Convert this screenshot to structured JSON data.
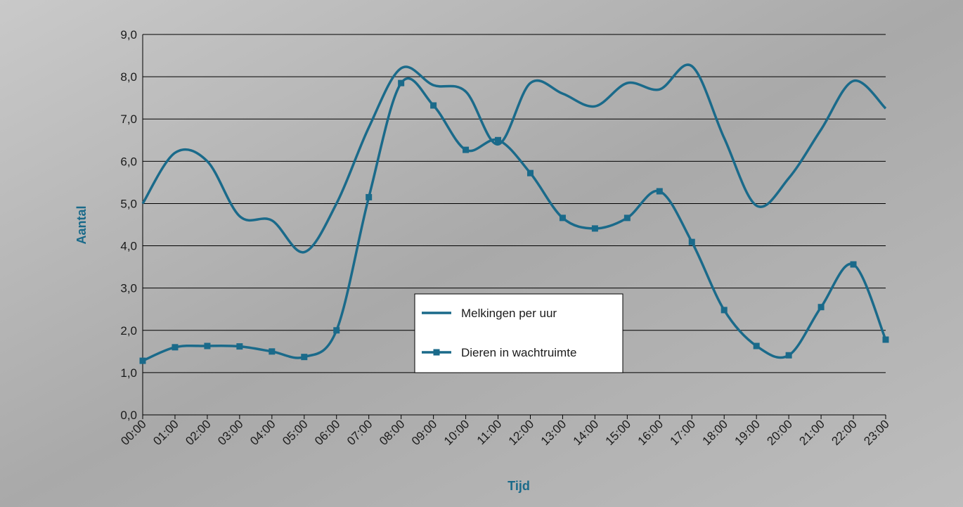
{
  "chart_data": {
    "type": "line",
    "x_label": "Tijd",
    "y_label": "Aantal",
    "categories": [
      "00:00",
      "01:00",
      "02:00",
      "03:00",
      "04:00",
      "05:00",
      "06:00",
      "07:00",
      "08:00",
      "09:00",
      "10:00",
      "11:00",
      "12:00",
      "13:00",
      "14:00",
      "15:00",
      "16:00",
      "17:00",
      "18:00",
      "19:00",
      "20:00",
      "21:00",
      "22:00",
      "23:00"
    ],
    "series": [
      {
        "name": "Melkingen per uur",
        "color": "#1a6a8a",
        "marker": false,
        "values": [
          5.0,
          6.2,
          6.0,
          4.7,
          4.6,
          3.85,
          5.0,
          6.8,
          8.2,
          7.8,
          7.65,
          6.4,
          7.85,
          7.6,
          7.3,
          7.85,
          7.7,
          8.25,
          6.55,
          4.95,
          5.6,
          6.75,
          7.9,
          7.25
        ]
      },
      {
        "name": "Dieren in wachtruimte",
        "color": "#1a6a8a",
        "marker": true,
        "values": [
          1.28,
          1.6,
          1.63,
          1.62,
          1.5,
          1.37,
          2.0,
          5.15,
          7.85,
          7.32,
          6.27,
          6.5,
          5.72,
          4.66,
          4.41,
          4.66,
          5.29,
          4.09,
          2.48,
          1.63,
          1.41,
          2.55,
          3.56,
          1.78
        ]
      }
    ],
    "ylim": [
      0,
      9
    ],
    "yticks": [
      {
        "value": 0,
        "label": "0,0"
      },
      {
        "value": 1,
        "label": "1,0"
      },
      {
        "value": 2,
        "label": "2,0"
      },
      {
        "value": 3,
        "label": "3,0"
      },
      {
        "value": 4,
        "label": "4,0"
      },
      {
        "value": 5,
        "label": "5,0"
      },
      {
        "value": 6,
        "label": "6,0"
      },
      {
        "value": 7,
        "label": "7,0"
      },
      {
        "value": 8,
        "label": "8,0"
      },
      {
        "value": 9,
        "label": "9,0"
      }
    ],
    "grid": true,
    "smooth": true
  }
}
